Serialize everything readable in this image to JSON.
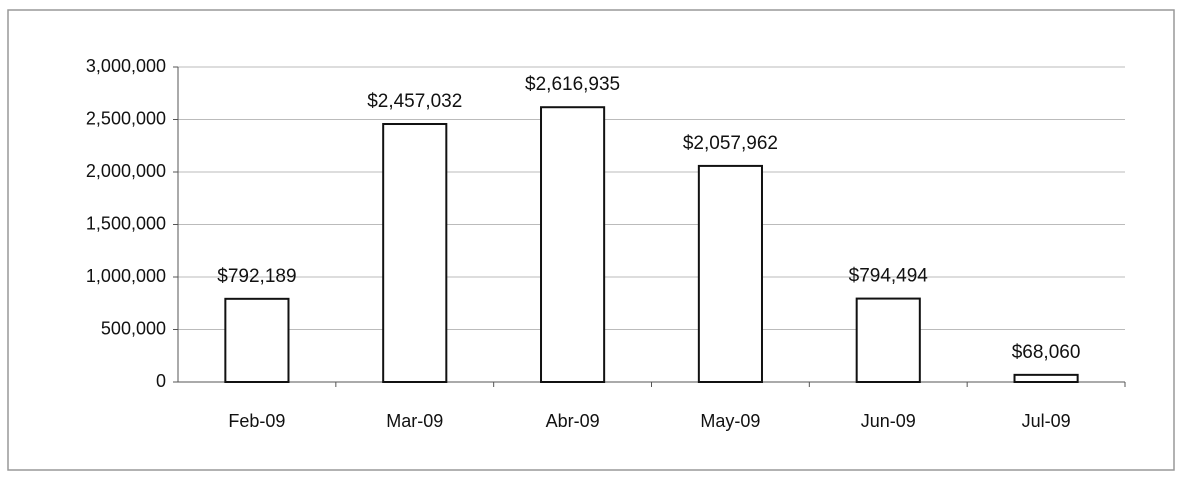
{
  "chart_data": {
    "type": "bar",
    "categories": [
      "Feb-09",
      "Mar-09",
      "Abr-09",
      "May-09",
      "Jun-09",
      "Jul-09"
    ],
    "values": [
      792189,
      2457032,
      2616935,
      2057962,
      794494,
      68060
    ],
    "value_labels": [
      "$792,189",
      "$2,457,032",
      "$2,616,935",
      "$2,057,962",
      "$794,494",
      "$68,060"
    ],
    "color": "#ffffff",
    "ylim": [
      0,
      3000000
    ],
    "yticks": [
      0,
      {
        "value": 500000,
        "label": "500,000"
      },
      {
        "value": 1000000,
        "label": "1,000,000"
      },
      {
        "value": 1500000,
        "label": "1,500,000"
      },
      {
        "value": 2000000,
        "label": "2,000,000"
      },
      {
        "value": 2500000,
        "label": "2,500,000"
      },
      {
        "value": 3000000,
        "label": "3,000,000"
      }
    ],
    "grid": true
  }
}
